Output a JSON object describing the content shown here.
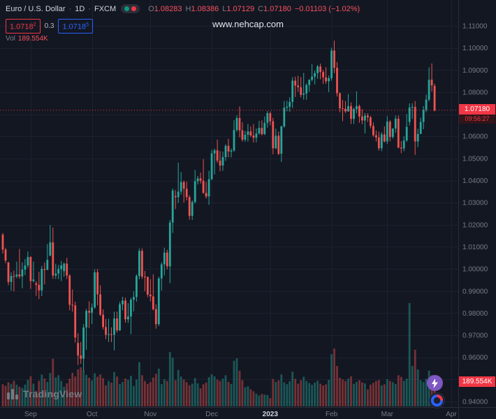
{
  "header": {
    "symbol": "Euro / U.S. Dollar",
    "sep": "·",
    "interval": "1D",
    "exchange": "FXCM",
    "ohlc": {
      "o_label": "O",
      "o": "1.08283",
      "h_label": "H",
      "h": "1.08386",
      "l_label": "L",
      "l": "1.07129",
      "c_label": "C",
      "c": "1.07180",
      "change": "−0.01103 (−1.02%)"
    },
    "bid": {
      "main": "1.0718",
      "sup": "2"
    },
    "spread": "0.3",
    "ask": {
      "main": "1.0718",
      "sup": "5"
    },
    "vol_label": "Vol",
    "vol_value": "189.554K"
  },
  "watermark": "www.nehcap.com",
  "axis": {
    "price_label": "1.07180",
    "countdown": "09:56:27",
    "volume_label": "189.554K"
  },
  "logo": "TradingView",
  "colors": {
    "background": "#131722",
    "grid": "#1c2130",
    "up": "#26a69a",
    "down": "#ef5350",
    "accent_red": "#f23645",
    "accent_blue": "#2962ff",
    "text": "#d1d4dc",
    "text_muted": "#787b86",
    "green_dot": "#089981",
    "red_dot": "#f23645"
  },
  "chart_data": {
    "type": "candlestick+volume",
    "title": "Euro / U.S. Dollar, 1D, FXCM",
    "ylabel": "Price (USD per EUR)",
    "ylim": [
      0.94,
      1.11
    ],
    "y_tick_step": 0.01,
    "grid": true,
    "y_ticks": [
      "1.11000",
      "1.10000",
      "1.09000",
      "1.08000",
      "1.07000",
      "1.06000",
      "1.05000",
      "1.04000",
      "1.03000",
      "1.02000",
      "1.01000",
      "1.00000",
      "0.99000",
      "0.98000",
      "0.97000",
      "0.96000",
      "0.95000",
      "0.94000"
    ],
    "time_labels": [
      {
        "label": "Sep",
        "index": 10
      },
      {
        "label": "Oct",
        "index": 32
      },
      {
        "label": "Nov",
        "index": 53
      },
      {
        "label": "Dec",
        "index": 75
      },
      {
        "label": "2023",
        "index": 96,
        "strong": true
      },
      {
        "label": "Feb",
        "index": 118
      },
      {
        "label": "Mar",
        "index": 138
      },
      {
        "label": "Apr",
        "index": 161
      }
    ],
    "total_slots": 164,
    "last_price": 1.0718,
    "candles": [
      [
        1.0155,
        1.0162,
        1.007,
        1.0088
      ],
      [
        1.0088,
        1.0095,
        1.0026,
        1.0038
      ],
      [
        1.003,
        1.0031,
        0.9926,
        0.9941
      ],
      [
        0.9941,
        0.9985,
        0.9901,
        0.9968
      ],
      [
        0.9968,
        0.9992,
        0.9899,
        0.9966
      ],
      [
        0.9966,
        1.0033,
        0.9958,
        0.9975
      ],
      [
        0.9975,
        1.009,
        0.9956,
        0.9966
      ],
      [
        0.9966,
        1.003,
        0.9913,
        0.9997
      ],
      [
        0.9997,
        1.0045,
        0.9972,
        1.0016
      ],
      [
        1.0016,
        1.0079,
        1.0005,
        1.0054
      ],
      [
        1.0054,
        1.0058,
        0.991,
        0.9945
      ],
      [
        0.9945,
        1.0033,
        0.9939,
        0.9952
      ],
      [
        0.9935,
        0.9945,
        0.9878,
        0.9928
      ],
      [
        0.9928,
        0.9987,
        0.9864,
        0.9903
      ],
      [
        0.9903,
        1.0014,
        0.9877,
        1.0
      ],
      [
        1.0,
        1.0029,
        0.993,
        0.9996
      ],
      [
        0.9996,
        1.0113,
        0.9994,
        1.0041
      ],
      [
        1.006,
        1.0198,
        1.0058,
        1.012
      ],
      [
        1.012,
        1.0187,
        0.9955,
        0.997
      ],
      [
        0.997,
        1.0023,
        0.9955,
        0.9979
      ],
      [
        0.9979,
        1.0018,
        0.9954,
        1.0
      ],
      [
        1.0,
        1.0036,
        0.9945,
        1.0016
      ],
      [
        0.999,
        1.0029,
        0.9964,
        1.0024
      ],
      [
        1.0024,
        1.005,
        0.9955,
        0.997
      ],
      [
        0.997,
        0.9976,
        0.9813,
        0.9838
      ],
      [
        0.9838,
        0.9907,
        0.9807,
        0.9835
      ],
      [
        0.9835,
        0.9852,
        0.9667,
        0.969
      ],
      [
        0.9665,
        0.9709,
        0.9565,
        0.9608
      ],
      [
        0.9608,
        0.967,
        0.9571,
        0.9594
      ],
      [
        0.9594,
        0.975,
        0.9536,
        0.9735
      ],
      [
        0.9735,
        0.9819,
        0.9634,
        0.981
      ],
      [
        0.981,
        0.9853,
        0.9733,
        0.9802
      ],
      [
        0.9802,
        0.9844,
        0.9751,
        0.9826
      ],
      [
        0.9826,
        0.9999,
        0.982,
        0.9985
      ],
      [
        0.9985,
        1.0,
        0.9835,
        0.9885
      ],
      [
        0.9885,
        0.9926,
        0.9787,
        0.9793
      ],
      [
        0.9793,
        0.9817,
        0.9726,
        0.9737
      ],
      [
        0.9737,
        0.9774,
        0.9682,
        0.9702
      ],
      [
        0.9702,
        0.9774,
        0.967,
        0.9705
      ],
      [
        0.9705,
        0.9736,
        0.9669,
        0.9702
      ],
      [
        0.9702,
        0.9807,
        0.9632,
        0.9776
      ],
      [
        0.9776,
        0.9807,
        0.9712,
        0.9722
      ],
      [
        0.9722,
        0.9852,
        0.972,
        0.984
      ],
      [
        0.984,
        0.9874,
        0.9813,
        0.9857
      ],
      [
        0.9857,
        0.987,
        0.9757,
        0.9772
      ],
      [
        0.9772,
        0.9845,
        0.9756,
        0.9785
      ],
      [
        0.9785,
        0.987,
        0.9705,
        0.9861
      ],
      [
        0.9861,
        0.9899,
        0.9808,
        0.9873
      ],
      [
        0.9873,
        0.9976,
        0.9852,
        0.9968
      ],
      [
        0.9968,
        1.0093,
        0.9953,
        1.0082
      ],
      [
        1.0082,
        1.0094,
        0.9955,
        0.9965
      ],
      [
        0.9965,
        0.9991,
        0.9899,
        0.9964
      ],
      [
        0.9964,
        0.9965,
        0.9872,
        0.9884
      ],
      [
        0.9884,
        0.9954,
        0.9853,
        0.9876
      ],
      [
        0.9876,
        0.9976,
        0.9812,
        0.9818
      ],
      [
        0.9818,
        0.984,
        0.973,
        0.975
      ],
      [
        0.975,
        0.9965,
        0.9742,
        0.9957
      ],
      [
        0.9957,
        1.003,
        0.9902,
        1.0021
      ],
      [
        1.0021,
        1.0096,
        0.9971,
        1.0074
      ],
      [
        1.0074,
        1.0087,
        0.9998,
        1.0012
      ],
      [
        1.0012,
        1.0222,
        0.9936,
        1.021
      ],
      [
        1.021,
        1.0364,
        1.0163,
        1.0355
      ],
      [
        1.033,
        1.0357,
        1.0271,
        1.0325
      ],
      [
        1.0325,
        1.0481,
        1.0299,
        1.035
      ],
      [
        1.035,
        1.0438,
        1.0336,
        1.0393
      ],
      [
        1.0393,
        1.04,
        1.0301,
        1.0363
      ],
      [
        1.0363,
        1.0395,
        1.031,
        1.0325
      ],
      [
        1.0325,
        1.0334,
        1.0223,
        1.024
      ],
      [
        1.024,
        1.031,
        1.0222,
        1.0303
      ],
      [
        1.0303,
        1.0448,
        1.0296,
        1.0397
      ],
      [
        1.0397,
        1.0421,
        1.0382,
        1.041
      ],
      [
        1.041,
        1.0436,
        1.0386,
        1.0399
      ],
      [
        1.0399,
        1.0497,
        1.034,
        1.0344
      ],
      [
        1.0344,
        1.0394,
        1.0319,
        1.0328
      ],
      [
        1.0328,
        1.0444,
        1.029,
        1.0406
      ],
      [
        1.0406,
        1.0539,
        1.0402,
        1.0523
      ],
      [
        1.0523,
        1.0545,
        1.0428,
        1.0537
      ],
      [
        1.0537,
        1.0585,
        1.048,
        1.049
      ],
      [
        1.049,
        1.0533,
        1.0442,
        1.0468
      ],
      [
        1.0468,
        1.0531,
        1.0444,
        1.0506
      ],
      [
        1.0506,
        1.0564,
        1.0489,
        1.0557
      ],
      [
        1.0557,
        1.0589,
        1.0505,
        1.0531
      ],
      [
        1.0531,
        1.0545,
        1.0505,
        1.0536
      ],
      [
        1.0536,
        1.0673,
        1.053,
        1.0629
      ],
      [
        1.0629,
        1.0695,
        1.062,
        1.0683
      ],
      [
        1.0683,
        1.0735,
        1.0595,
        1.0627
      ],
      [
        1.0627,
        1.0664,
        1.0576,
        1.0585
      ],
      [
        1.0585,
        1.0625,
        1.0575,
        1.0607
      ],
      [
        1.0607,
        1.0656,
        1.0576,
        1.0622
      ],
      [
        1.0622,
        1.0645,
        1.0597,
        1.0604
      ],
      [
        1.0604,
        1.0656,
        1.0572,
        1.0594
      ],
      [
        1.0594,
        1.0636,
        1.0573,
        1.0613
      ],
      [
        1.0613,
        1.067,
        1.0608,
        1.0638
      ],
      [
        1.0638,
        1.0672,
        1.0604,
        1.061
      ],
      [
        1.061,
        1.069,
        1.0606,
        1.0661
      ],
      [
        1.0661,
        1.0714,
        1.0639,
        1.0705
      ],
      [
        1.0705,
        1.0712,
        1.065,
        1.0668
      ],
      [
        1.0668,
        1.0684,
        1.0519,
        1.0546
      ],
      [
        1.0546,
        1.0635,
        1.0542,
        1.0603
      ],
      [
        1.0603,
        1.0622,
        1.0515,
        1.0521
      ],
      [
        1.0521,
        1.0648,
        1.0484,
        1.0645
      ],
      [
        1.0645,
        1.076,
        1.0639,
        1.073
      ],
      [
        1.073,
        1.0761,
        1.0713,
        1.0734
      ],
      [
        1.0734,
        1.0776,
        1.0711,
        1.0756
      ],
      [
        1.0756,
        1.0868,
        1.0728,
        1.0852
      ],
      [
        1.0852,
        1.087,
        1.0778,
        1.083
      ],
      [
        1.083,
        1.0874,
        1.0802,
        1.0822
      ],
      [
        1.0822,
        1.0868,
        1.0776,
        1.0788
      ],
      [
        1.0788,
        1.0887,
        1.0766,
        1.0794
      ],
      [
        1.0794,
        1.084,
        1.0766,
        1.0832
      ],
      [
        1.0832,
        1.0858,
        1.0802,
        1.0856
      ],
      [
        1.0856,
        1.0927,
        1.0848,
        1.087
      ],
      [
        1.087,
        1.0898,
        1.0835,
        1.0886
      ],
      [
        1.0886,
        1.0923,
        1.086,
        1.0916
      ],
      [
        1.0916,
        1.0929,
        1.0858,
        1.0891
      ],
      [
        1.0891,
        1.09,
        1.0837,
        1.0867
      ],
      [
        1.0867,
        1.0913,
        1.0838,
        1.0849
      ],
      [
        1.0849,
        1.0875,
        1.08,
        1.0863
      ],
      [
        1.0863,
        1.1001,
        1.0852,
        1.0988
      ],
      [
        1.0988,
        1.1033,
        1.0886,
        1.091
      ],
      [
        1.091,
        1.0936,
        1.078,
        1.0795
      ],
      [
        1.0795,
        1.0798,
        1.0709,
        1.0727
      ],
      [
        1.0727,
        1.0765,
        1.0669,
        1.0725
      ],
      [
        1.0725,
        1.076,
        1.0706,
        1.0713
      ],
      [
        1.0713,
        1.0791,
        1.0711,
        1.0737
      ],
      [
        1.0737,
        1.0753,
        1.0656,
        1.0679
      ],
      [
        1.0679,
        1.073,
        1.0656,
        1.0723
      ],
      [
        1.0723,
        1.0804,
        1.0704,
        1.0737
      ],
      [
        1.0737,
        1.0744,
        1.0661,
        1.069
      ],
      [
        1.069,
        1.0723,
        1.0655,
        1.0672
      ],
      [
        1.0672,
        1.0706,
        1.0613,
        1.0694
      ],
      [
        1.0694,
        1.0705,
        1.0665,
        1.0686
      ],
      [
        1.0686,
        1.0692,
        1.0636,
        1.0647
      ],
      [
        1.0647,
        1.0663,
        1.0598,
        1.0605
      ],
      [
        1.0605,
        1.0626,
        1.0577,
        1.0595
      ],
      [
        1.0595,
        1.0621,
        1.0536,
        1.0546
      ],
      [
        1.0546,
        1.0619,
        1.0533,
        1.0609
      ],
      [
        1.0609,
        1.0645,
        1.0572,
        1.0577
      ],
      [
        1.0577,
        1.0691,
        1.0565,
        1.0666
      ],
      [
        1.0666,
        1.0673,
        1.0577,
        1.0597
      ],
      [
        1.0597,
        1.0637,
        1.059,
        1.0635
      ],
      [
        1.0635,
        1.0694,
        1.0616,
        1.068
      ],
      [
        1.068,
        1.0695,
        1.0546,
        1.0549
      ],
      [
        1.0549,
        1.0579,
        1.0524,
        1.0545
      ],
      [
        1.0545,
        1.06,
        1.0532,
        1.0581
      ],
      [
        1.0581,
        1.0701,
        1.0575,
        1.0643
      ],
      [
        1.0665,
        1.0749,
        1.0649,
        1.0731
      ],
      [
        1.0731,
        1.075,
        1.0679,
        1.0733
      ],
      [
        1.0733,
        1.076,
        1.0516,
        1.0577
      ],
      [
        1.0577,
        1.0635,
        1.0551,
        1.0611
      ],
      [
        1.0611,
        1.0685,
        1.0611,
        1.0665
      ],
      [
        1.0665,
        1.0737,
        1.0632,
        1.072
      ],
      [
        1.072,
        1.0789,
        1.0709,
        1.0766
      ],
      [
        1.0766,
        1.0912,
        1.0758,
        1.0856
      ],
      [
        1.0856,
        1.093,
        1.0803,
        1.083
      ],
      [
        1.08283,
        1.08386,
        1.07129,
        1.0718
      ]
    ],
    "volumes_k": [
      171,
      159,
      186,
      174,
      198,
      167,
      152,
      142,
      168,
      205,
      233,
      176,
      121,
      198,
      246,
      215,
      189,
      258,
      368,
      224,
      241,
      197,
      152,
      178,
      214,
      260,
      231,
      287,
      302,
      276,
      243,
      221,
      201,
      256,
      229,
      247,
      218,
      163,
      197,
      184,
      266,
      230,
      172,
      189,
      215,
      205,
      236,
      158,
      208,
      342,
      241,
      196,
      174,
      188,
      224,
      251,
      291,
      172,
      210,
      196,
      420,
      376,
      203,
      282,
      231,
      208,
      187,
      164,
      175,
      219,
      178,
      139,
      171,
      184,
      226,
      248,
      232,
      207,
      196,
      214,
      241,
      189,
      173,
      352,
      371,
      276,
      203,
      148,
      156,
      132,
      117,
      98,
      84,
      96,
      91,
      88,
      64,
      212,
      189,
      201,
      247,
      186,
      172,
      194,
      268,
      213,
      176,
      203,
      229,
      196,
      181,
      167,
      184,
      198,
      175,
      162,
      171,
      205,
      404,
      447,
      312,
      221,
      208,
      196,
      214,
      232,
      174,
      189,
      203,
      186,
      178,
      131,
      168,
      182,
      196,
      204,
      163,
      171,
      209,
      196,
      187,
      173,
      241,
      228,
      197,
      214,
      798,
      312,
      438,
      286,
      203,
      189,
      214,
      276,
      241,
      189.554
    ]
  }
}
